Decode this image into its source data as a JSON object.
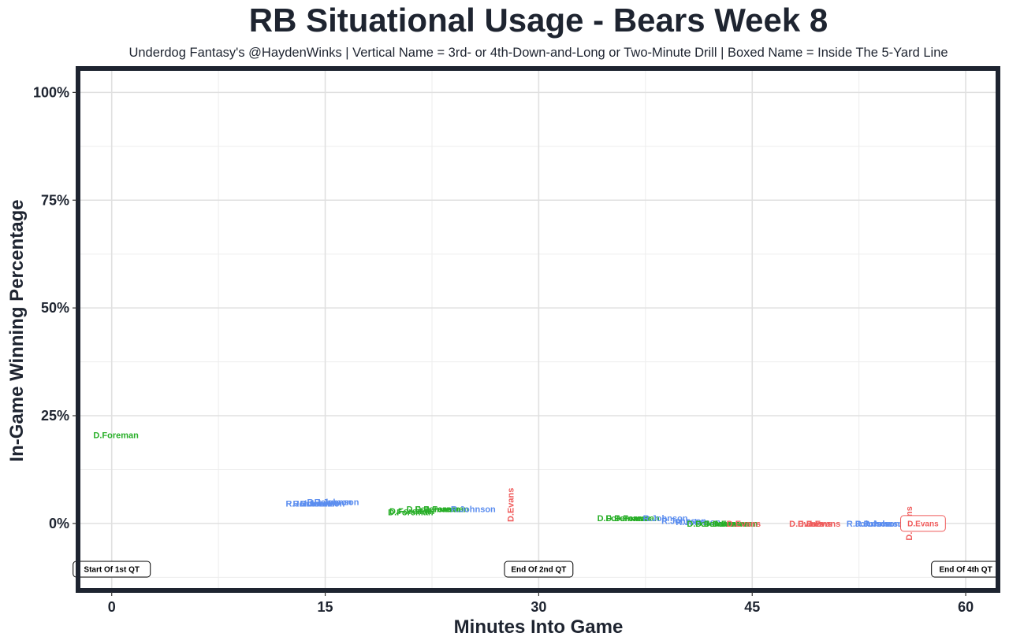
{
  "chart_data": {
    "type": "scatter",
    "title": "RB Situational Usage - Bears Week 8",
    "subtitle": "Underdog Fantasy's @HaydenWinks | Vertical Name = 3rd- or 4th-Down-and-Long or Two-Minute Drill | Boxed Name = Inside The 5-Yard Line",
    "xlabel": "Minutes Into Game",
    "ylabel": "In-Game Winning Percentage",
    "xlim": [
      -2.2,
      62.1
    ],
    "ylim": [
      -15,
      105
    ],
    "x_ticks": [
      0,
      15,
      30,
      45,
      60
    ],
    "x_tick_labels": [
      "0",
      "15",
      "30",
      "45",
      "60"
    ],
    "y_ticks": [
      0,
      25,
      50,
      75,
      100
    ],
    "y_tick_labels": [
      "0%",
      "25%",
      "50%",
      "75%",
      "100%"
    ],
    "grid": true,
    "colors": {
      "D.Foreman": "#27ae27",
      "R.Johnson": "#5b8def",
      "D.Evans": "#ef5a5a"
    },
    "markers": [
      {
        "x": 0,
        "label": "Start Of 1st QT"
      },
      {
        "x": 30,
        "label": "End Of 2nd QT"
      },
      {
        "x": 60,
        "label": "End Of 4th QT"
      }
    ],
    "points": [
      {
        "x": 0.3,
        "y": 20.5,
        "player": "D.Foreman"
      },
      {
        "x": 13.8,
        "y": 4.6,
        "player": "R.Johnson"
      },
      {
        "x": 14.3,
        "y": 4.6,
        "player": "R.Johnson"
      },
      {
        "x": 14.8,
        "y": 4.6,
        "player": "R.Johnson"
      },
      {
        "x": 15.3,
        "y": 5.0,
        "player": "R.Johnson"
      },
      {
        "x": 15.8,
        "y": 5.0,
        "player": "R.Johnson"
      },
      {
        "x": 21.0,
        "y": 2.6,
        "player": "D.Foreman"
      },
      {
        "x": 21.1,
        "y": 2.9,
        "player": "D.Foreman"
      },
      {
        "x": 22.3,
        "y": 3.4,
        "player": "D.Foreman"
      },
      {
        "x": 22.9,
        "y": 3.4,
        "player": "D.Foreman"
      },
      {
        "x": 23.5,
        "y": 3.4,
        "player": "D.Foreman"
      },
      {
        "x": 25.4,
        "y": 3.4,
        "player": "R.Johnson"
      },
      {
        "x": 28.0,
        "y": 4.3,
        "player": "D.Evans",
        "vertical": true
      },
      {
        "x": 35.7,
        "y": 1.3,
        "player": "D.Foreman"
      },
      {
        "x": 36.3,
        "y": 1.3,
        "player": "D.Foreman"
      },
      {
        "x": 36.9,
        "y": 1.3,
        "player": "D.Foreman"
      },
      {
        "x": 38.9,
        "y": 1.3,
        "player": "R.Johnson"
      },
      {
        "x": 40.2,
        "y": 0.6,
        "player": "R.Johnson"
      },
      {
        "x": 41.2,
        "y": 0.3,
        "player": "R.Johnson"
      },
      {
        "x": 42.0,
        "y": 0.0,
        "player": "D.Foreman"
      },
      {
        "x": 42.6,
        "y": 0.0,
        "player": "D.Foreman"
      },
      {
        "x": 43.2,
        "y": 0.0,
        "player": "D.Foreman"
      },
      {
        "x": 43.8,
        "y": 0.0,
        "player": "D.Foreman"
      },
      {
        "x": 44.4,
        "y": 0.0,
        "player": "D.Evans"
      },
      {
        "x": 48.8,
        "y": 0.0,
        "player": "D.Evans"
      },
      {
        "x": 49.4,
        "y": 0.0,
        "player": "D.Evans"
      },
      {
        "x": 50.0,
        "y": 0.0,
        "player": "D.Evans"
      },
      {
        "x": 53.2,
        "y": 0.0,
        "player": "R.Johnson"
      },
      {
        "x": 53.8,
        "y": 0.0,
        "player": "R.Johnson"
      },
      {
        "x": 54.4,
        "y": 0.0,
        "player": "R.Johnson"
      },
      {
        "x": 56.0,
        "y": 0.0,
        "player": "D.Evans",
        "vertical": true
      },
      {
        "x": 57.0,
        "y": 0.0,
        "player": "D.Evans",
        "boxed": true
      }
    ]
  }
}
